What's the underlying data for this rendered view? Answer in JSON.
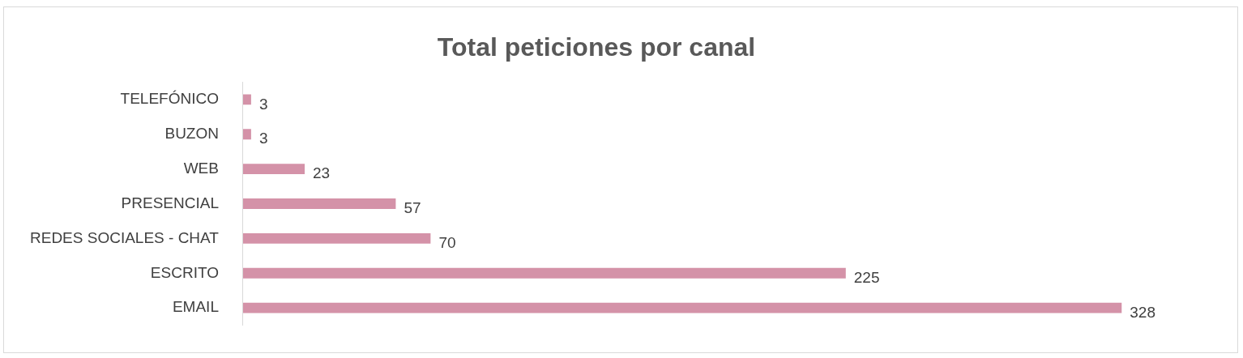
{
  "chart_data": {
    "type": "bar",
    "orientation": "horizontal",
    "title": "Total peticiones por canal",
    "categories": [
      "TELEFÓNICO",
      "BUZON",
      "WEB",
      "PRESENCIAL",
      "REDES SOCIALES - CHAT",
      "ESCRITO",
      "EMAIL"
    ],
    "values": [
      3,
      3,
      23,
      57,
      70,
      225,
      328
    ],
    "color": "#d492a8",
    "data_labels": true,
    "tick_labels": "y"
  }
}
